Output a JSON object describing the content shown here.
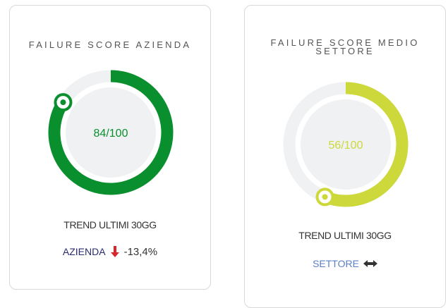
{
  "cards": [
    {
      "title": "FAILURE SCORE AZIENDA",
      "gauge": {
        "value": 84,
        "max": 100,
        "label": "84/100",
        "color": "#0a8f2e"
      },
      "trend_label": "TREND ULTIMI 30GG",
      "trend_subject": "AZIENDA",
      "trend_value": "-13,4%"
    },
    {
      "title": "FAILURE SCORE MEDIO SETTORE",
      "gauge": {
        "value": 56,
        "max": 100,
        "label": "56/100",
        "color": "#cdd83a"
      },
      "trend_label": "TREND ULTIMI 30GG",
      "trend_subject": "SETTORE"
    }
  ]
}
